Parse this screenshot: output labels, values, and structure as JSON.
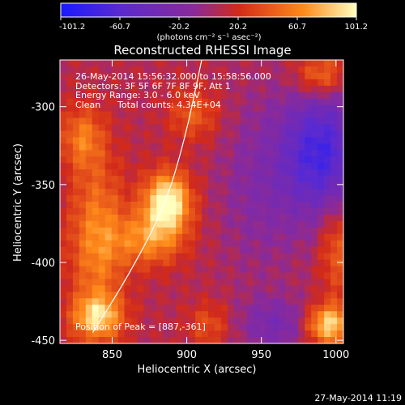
{
  "chart_data": {
    "type": "heatmap",
    "title": "Reconstructed RHESSI Image",
    "xlabel": "Heliocentric X (arcsec)",
    "ylabel": "Heliocentric Y (arcsec)",
    "xlim": [
      815,
      1005
    ],
    "ylim": [
      -452,
      -270
    ],
    "xticks": [
      850,
      900,
      950,
      1000
    ],
    "yticks": [
      -300,
      -350,
      -400,
      -450
    ],
    "colorbar": {
      "ticks": [
        "-101.2",
        "-60.7",
        "-20.2",
        "20.2",
        "60.7",
        "101.2"
      ],
      "min": -101.2,
      "max": 101.2,
      "unit_label": "(photons cm⁻² s⁻¹ asec⁻²)",
      "colors": [
        "#1a1aff",
        "#5a2ad0",
        "#8a2a9a",
        "#d22a1a",
        "#ff8a1a",
        "#ffffc0"
      ]
    },
    "annotations": {
      "time": "26-May-2014 15:56:32.000 to 15:58:56.000",
      "detectors": "Detectors: 3F 5F 6F 7F 8F 9F, Att 1",
      "energy": "Energy Range: 3.0 - 6.0 keV",
      "clean": "Clean",
      "counts": "Total counts: 4.34E+04",
      "peak": "Position of Peak = [887,-361]"
    },
    "peak": [
      887,
      -361
    ],
    "sources": [
      {
        "x": 887,
        "y": -361,
        "amp": 101,
        "sx": 11,
        "sy": 13
      },
      {
        "x": 875,
        "y": -385,
        "amp": 55,
        "sx": 16,
        "sy": 12
      },
      {
        "x": 840,
        "y": -385,
        "amp": 55,
        "sx": 13,
        "sy": 35
      },
      {
        "x": 840,
        "y": -435,
        "amp": 70,
        "sx": 12,
        "sy": 10
      },
      {
        "x": 830,
        "y": -320,
        "amp": 45,
        "sx": 10,
        "sy": 14
      },
      {
        "x": 905,
        "y": -305,
        "amp": 35,
        "sx": 12,
        "sy": 12
      },
      {
        "x": 995,
        "y": -440,
        "amp": 85,
        "sx": 11,
        "sy": 9
      },
      {
        "x": 990,
        "y": -280,
        "amp": 50,
        "sx": 12,
        "sy": 10
      },
      {
        "x": 1000,
        "y": -390,
        "amp": 38,
        "sx": 8,
        "sy": 22
      },
      {
        "x": 915,
        "y": -440,
        "amp": 30,
        "sx": 10,
        "sy": 10
      },
      {
        "x": 990,
        "y": -330,
        "amp": -80,
        "sx": 18,
        "sy": 28
      },
      {
        "x": 960,
        "y": -440,
        "amp": -35,
        "sx": 18,
        "sy": 12
      },
      {
        "x": 950,
        "y": -350,
        "amp": -25,
        "sx": 20,
        "sy": 40
      }
    ],
    "limb_curve": [
      [
        910,
        -270
      ],
      [
        899,
        -320
      ],
      [
        885,
        -365
      ],
      [
        860,
        -410
      ],
      [
        837,
        -445
      ]
    ]
  },
  "footer": {
    "timestamp": "27-May-2014 11:19"
  }
}
